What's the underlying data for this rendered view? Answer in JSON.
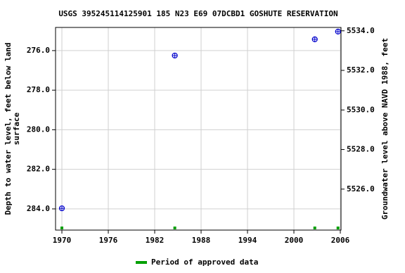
{
  "chart_data": {
    "type": "scatter",
    "title": "USGS 395245114125901 185 N23 E69 07DCBD1 GOSHUTE RESERVATION",
    "y_label": [
      "Depth to water level, feet below land",
      "surface"
    ],
    "y2_label": "Groundwater level above NAVD 1988, feet",
    "series": [
      {
        "name": "Depth to water level",
        "color": "#0000cc",
        "x": [
          1970.0,
          1984.6,
          2002.7,
          2005.7
        ],
        "values": [
          283.97,
          276.25,
          275.43,
          275.04
        ]
      }
    ],
    "approved": {
      "name": "Period of approved data",
      "color": "#00a000",
      "x": [
        1970.0,
        1984.6,
        2002.7,
        2005.7
      ]
    },
    "xlim": [
      1969.18,
      2006.09
    ],
    "xticks": [
      1970,
      1976,
      1982,
      1988,
      1994,
      2000,
      2006
    ],
    "ylim": [
      285.07,
      274.83
    ],
    "yticks": [
      {
        "value": 276,
        "label": "276.0"
      },
      {
        "value": 278,
        "label": "278.0"
      },
      {
        "value": 280,
        "label": "280.0"
      },
      {
        "value": 282,
        "label": "282.0"
      },
      {
        "value": 284,
        "label": "284.0"
      }
    ],
    "y2lim": [
      5523.93,
      5534.17
    ],
    "y2ticks": [
      {
        "value": 5526,
        "label": "5526.0"
      },
      {
        "value": 5528,
        "label": "5528.0"
      },
      {
        "value": 5530,
        "label": "5530.0"
      },
      {
        "value": 5532,
        "label": "5532.0"
      },
      {
        "value": 5534,
        "label": "5534.0"
      }
    ],
    "grid": true
  }
}
